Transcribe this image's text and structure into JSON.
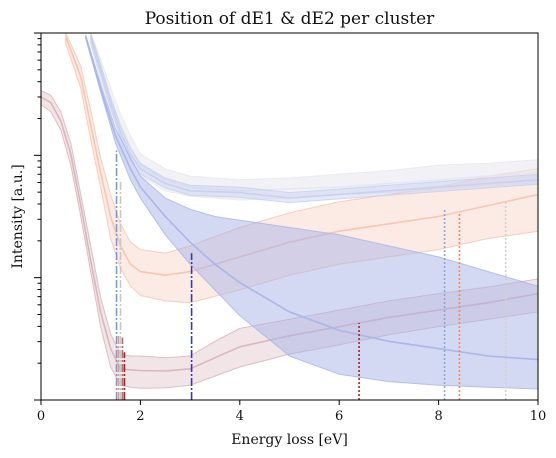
{
  "chart_data": {
    "type": "line",
    "title": "Position of dE1 & dE2 per cluster",
    "xlabel": "Energy loss [eV]",
    "ylabel": "Intensity [a.u.]",
    "xlim": [
      0,
      10
    ],
    "ylim": [
      0,
      1
    ],
    "yscale": "log",
    "x_ticks": [
      0,
      2,
      4,
      6,
      8,
      10
    ],
    "x_tick_labels": [
      "0",
      "2",
      "4",
      "6",
      "8",
      "10"
    ],
    "grid": false,
    "legend": "none",
    "series": [
      {
        "color": "#d9b0b8",
        "fill_alpha": 0.33,
        "line_alpha": 0.9,
        "x": [
          0,
          0.2,
          0.4,
          0.6,
          0.8,
          1.0,
          1.2,
          1.4,
          1.6,
          1.8,
          2.0,
          2.5,
          3.0,
          3.5,
          4.0,
          5.0,
          6.0,
          7.0,
          8.0,
          9.0,
          10.0
        ],
        "mean": [
          0.826,
          0.81,
          0.76,
          0.67,
          0.53,
          0.38,
          0.24,
          0.14,
          0.085,
          0.082,
          0.08,
          0.079,
          0.085,
          0.115,
          0.145,
          0.175,
          0.2,
          0.225,
          0.245,
          0.265,
          0.29
        ],
        "lower": [
          0.805,
          0.785,
          0.735,
          0.64,
          0.5,
          0.35,
          0.2,
          0.09,
          0.04,
          0.035,
          0.032,
          0.033,
          0.04,
          0.065,
          0.09,
          0.125,
          0.15,
          0.178,
          0.2,
          0.22,
          0.24
        ],
        "upper": [
          0.843,
          0.83,
          0.785,
          0.7,
          0.56,
          0.42,
          0.28,
          0.18,
          0.125,
          0.12,
          0.12,
          0.115,
          0.12,
          0.16,
          0.195,
          0.22,
          0.245,
          0.27,
          0.29,
          0.308,
          0.33
        ]
      },
      {
        "color": "#f5c2ae",
        "fill_alpha": 0.33,
        "line_alpha": 0.9,
        "x": [
          0.5,
          0.8,
          1.0,
          1.2,
          1.4,
          1.6,
          1.8,
          2.0,
          2.5,
          3.0,
          4.0,
          5.0,
          6.0,
          7.0,
          8.0,
          9.0,
          10.0
        ],
        "mean": [
          0.99,
          0.88,
          0.75,
          0.62,
          0.5,
          0.42,
          0.37,
          0.35,
          0.34,
          0.35,
          0.39,
          0.43,
          0.46,
          0.48,
          0.5,
          0.53,
          0.56
        ],
        "lower": [
          0.97,
          0.85,
          0.71,
          0.58,
          0.44,
          0.36,
          0.31,
          0.285,
          0.27,
          0.265,
          0.3,
          0.34,
          0.37,
          0.39,
          0.41,
          0.44,
          0.46
        ],
        "upper": [
          1.0,
          0.91,
          0.79,
          0.66,
          0.56,
          0.48,
          0.43,
          0.41,
          0.4,
          0.42,
          0.47,
          0.51,
          0.54,
          0.56,
          0.58,
          0.61,
          0.63
        ]
      },
      {
        "color": "#e6e6ee",
        "fill_alpha": 0.5,
        "line_alpha": 0.9,
        "x": [
          1.0,
          1.2,
          1.4,
          1.6,
          1.8,
          2.0,
          2.5,
          3.0,
          4.0,
          5.0,
          6.0,
          7.0,
          8.0,
          9.0,
          10.0
        ],
        "mean": [
          0.99,
          0.9,
          0.82,
          0.75,
          0.69,
          0.64,
          0.6,
          0.58,
          0.57,
          0.575,
          0.58,
          0.59,
          0.6,
          0.61,
          0.62
        ],
        "lower": [
          0.97,
          0.87,
          0.79,
          0.72,
          0.66,
          0.61,
          0.57,
          0.555,
          0.545,
          0.55,
          0.56,
          0.565,
          0.575,
          0.585,
          0.59
        ],
        "upper": [
          1.0,
          0.93,
          0.85,
          0.78,
          0.72,
          0.67,
          0.63,
          0.61,
          0.6,
          0.605,
          0.615,
          0.625,
          0.64,
          0.645,
          0.655
        ]
      },
      {
        "color": "#c5cff0",
        "fill_alpha": 0.45,
        "line_alpha": 0.9,
        "x": [
          1.0,
          1.2,
          1.4,
          1.6,
          1.8,
          2.0,
          2.5,
          3.0,
          4.0,
          5.0,
          6.0,
          7.0,
          8.0,
          9.0,
          10.0
        ],
        "mean": [
          0.99,
          0.9,
          0.81,
          0.73,
          0.67,
          0.63,
          0.59,
          0.57,
          0.565,
          0.55,
          0.56,
          0.57,
          0.58,
          0.59,
          0.6
        ],
        "lower": [
          0.975,
          0.885,
          0.795,
          0.715,
          0.655,
          0.615,
          0.578,
          0.558,
          0.552,
          0.538,
          0.548,
          0.558,
          0.568,
          0.578,
          0.588
        ],
        "upper": [
          1.0,
          0.915,
          0.825,
          0.745,
          0.685,
          0.645,
          0.605,
          0.585,
          0.58,
          0.565,
          0.575,
          0.585,
          0.595,
          0.605,
          0.615
        ]
      },
      {
        "color": "#a8b4e8",
        "fill_alpha": 0.5,
        "line_alpha": 0.95,
        "x": [
          0.9,
          1.2,
          1.5,
          1.8,
          2.0,
          2.5,
          3.0,
          3.5,
          4.0,
          5.0,
          6.0,
          7.0,
          8.0,
          9.0,
          10.0
        ],
        "mean": [
          0.99,
          0.85,
          0.72,
          0.63,
          0.58,
          0.5,
          0.43,
          0.37,
          0.32,
          0.24,
          0.19,
          0.16,
          0.14,
          0.12,
          0.11
        ],
        "lower": [
          0.985,
          0.84,
          0.7,
          0.6,
          0.55,
          0.45,
          0.37,
          0.3,
          0.23,
          0.12,
          0.07,
          0.05,
          0.04,
          0.035,
          0.03
        ],
        "upper": [
          0.995,
          0.86,
          0.74,
          0.66,
          0.61,
          0.55,
          0.52,
          0.5,
          0.49,
          0.47,
          0.45,
          0.42,
          0.39,
          0.35,
          0.31
        ]
      }
    ],
    "markers": [
      {
        "x": 1.52,
        "top": 0.68,
        "color": "#7f98d8",
        "style": "dashdot"
      },
      {
        "x": 1.56,
        "top": 0.18,
        "color": "#e8a080",
        "style": "dashdot"
      },
      {
        "x": 1.6,
        "top": 0.6,
        "color": "#c8c8c8",
        "style": "dashdot"
      },
      {
        "x": 1.64,
        "top": 0.17,
        "color": "#b07080",
        "style": "dashdot"
      },
      {
        "x": 1.68,
        "top": 0.13,
        "color": "#b22222",
        "style": "dashdot"
      },
      {
        "x": 3.03,
        "top": 0.4,
        "color": "#3a3aa8",
        "style": "dashdot"
      },
      {
        "x": 6.4,
        "top": 0.21,
        "color": "#b22222",
        "style": "dotted"
      },
      {
        "x": 8.12,
        "top": 0.52,
        "color": "#8aa6e0",
        "style": "dotted"
      },
      {
        "x": 8.42,
        "top": 0.51,
        "color": "#f08a60",
        "style": "dotted"
      },
      {
        "x": 9.35,
        "top": 0.54,
        "color": "#d0d0d0",
        "style": "dotted"
      }
    ]
  }
}
